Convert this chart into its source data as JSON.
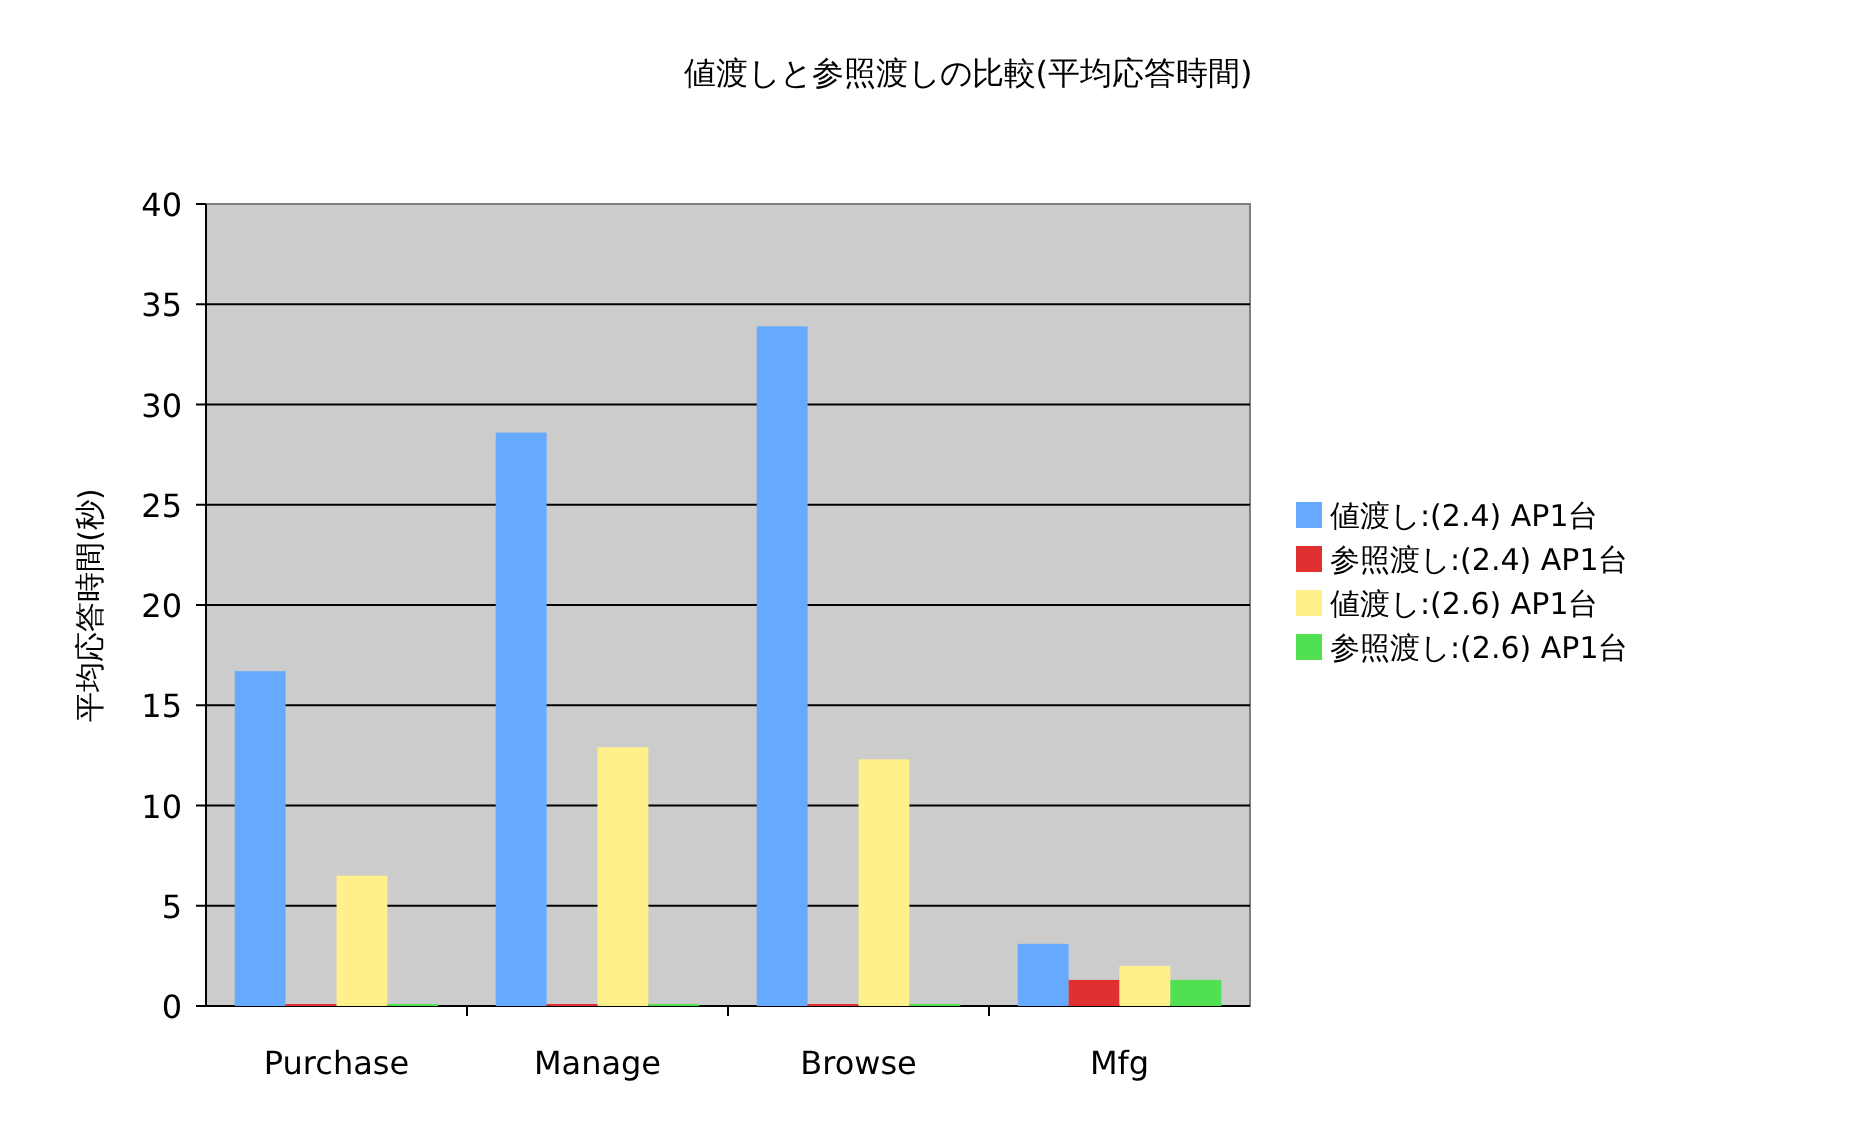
{
  "chart_data": {
    "type": "bar",
    "title": "値渡しと参照渡しの比較(平均応答時間)",
    "ylabel": "平均応答時間(秒)",
    "categories": [
      "Purchase",
      "Manage",
      "Browse",
      "Mfg"
    ],
    "series": [
      {
        "name": "値渡し:(2.4) AP1台",
        "color": "#66aaff",
        "values": [
          16.7,
          28.6,
          33.9,
          3.1
        ]
      },
      {
        "name": "参照渡し:(2.4) AP1台",
        "color": "#e03030",
        "values": [
          0.1,
          0.1,
          0.1,
          1.3
        ]
      },
      {
        "name": "値渡し:(2.6) AP1台",
        "color": "#fff08c",
        "values": [
          6.5,
          12.9,
          12.3,
          2.0
        ]
      },
      {
        "name": "参照渡し:(2.6) AP1台",
        "color": "#50e050",
        "values": [
          0.1,
          0.1,
          0.1,
          1.3
        ]
      }
    ],
    "ylim": [
      0,
      40
    ],
    "yticks": [
      0,
      5,
      10,
      15,
      20,
      25,
      30,
      35,
      40
    ],
    "grid": "y",
    "legend": "right"
  }
}
